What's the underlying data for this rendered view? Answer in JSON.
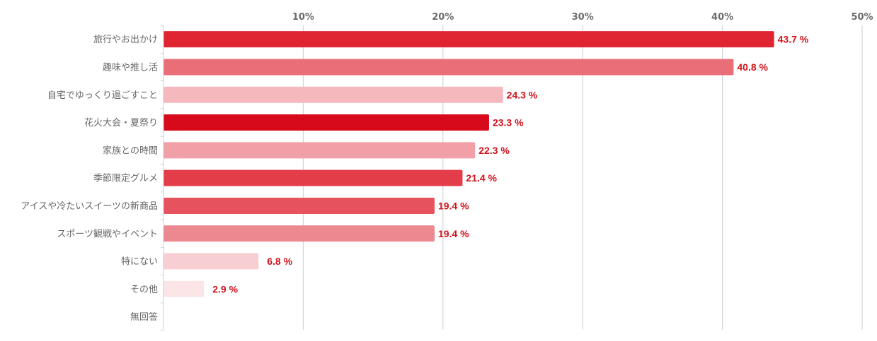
{
  "chart_data": {
    "type": "bar",
    "orientation": "horizontal",
    "title": "",
    "xlabel": "",
    "ylabel": "",
    "xlim": [
      0,
      50
    ],
    "ticks": [
      {
        "value": 10,
        "label": "10%"
      },
      {
        "value": 20,
        "label": "20%"
      },
      {
        "value": 30,
        "label": "30%"
      },
      {
        "value": 40,
        "label": "40%"
      },
      {
        "value": 50,
        "label": "50%"
      }
    ],
    "grid": true,
    "legend": "none",
    "categories": [
      "旅行やお出かけ",
      "趣味や推し活",
      "自宅でゆっくり過ごすこと",
      "花火大会・夏祭り",
      "家族との時間",
      "季節限定グルメ",
      "アイスや冷たいスイーツの新商品",
      "スポーツ観戦やイベント",
      "特にない",
      "その他",
      "無回答"
    ],
    "values": [
      43.7,
      40.8,
      24.3,
      23.3,
      22.3,
      21.4,
      19.4,
      19.4,
      6.8,
      2.9,
      null
    ],
    "value_labels": [
      "43.7 %",
      "40.8 %",
      "24.3 %",
      "23.3 %",
      "22.3 %",
      "21.4 %",
      "19.4 %",
      "19.4 %",
      "6.8 %",
      "2.9 %",
      ""
    ],
    "bar_colors": [
      "#e02532",
      "#e96e78",
      "#f4b8bd",
      "#d60a1b",
      "#f0a0a6",
      "#e43d4a",
      "#e6535e",
      "#ec8890",
      "#f7cfd2",
      "#fbe5e7",
      "#ffffff"
    ],
    "value_label_color": "#d0121b",
    "grid_color": "#c9cdd3"
  }
}
